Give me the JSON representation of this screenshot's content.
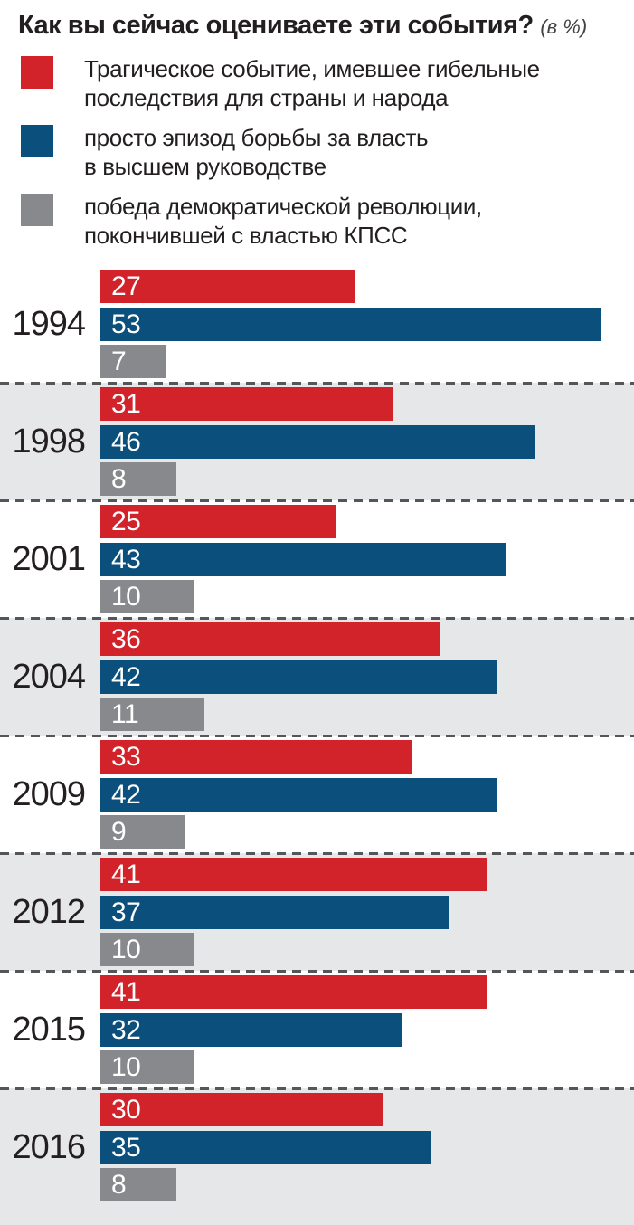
{
  "page": {
    "title": "Как вы сейчас оцениваете эти события?",
    "title_unit": "(в %)"
  },
  "legend": {
    "items": [
      {
        "series": "tragic",
        "color": "#d2232a",
        "label": "Трагическое событие, имевшее гибельные\nпоследствия для страны и народа"
      },
      {
        "series": "power-struggle",
        "color": "#0b4f7c",
        "label": "просто эпизод борьбы за власть\nв высшем руководстве"
      },
      {
        "series": "democratic-victory",
        "color": "#87898c",
        "label": "победа демократической революции,\nпокончившей с властью КПСС"
      }
    ]
  },
  "palette": {
    "row_alt_bg": "#e6e7e8",
    "separator": "#55565a",
    "text": "#231f20",
    "value_text": "#ffffff"
  },
  "chart_data": {
    "type": "bar",
    "orientation": "horizontal",
    "title": "Как вы сейчас оцениваете эти события?",
    "unit": "в %",
    "categories": [
      "1994",
      "1998",
      "2001",
      "2004",
      "2009",
      "2012",
      "2015",
      "2016"
    ],
    "series": [
      {
        "name": "Трагическое событие, имевшее гибельные последствия для страны и народа",
        "color": "#d2232a",
        "values": [
          27,
          31,
          25,
          36,
          33,
          41,
          41,
          30
        ]
      },
      {
        "name": "просто эпизод борьбы за власть в высшем руководстве",
        "color": "#0b4f7c",
        "values": [
          53,
          46,
          43,
          42,
          42,
          37,
          32,
          35
        ]
      },
      {
        "name": "победа демократической революции, покончившей с властью КПСС",
        "color": "#87898c",
        "values": [
          7,
          8,
          10,
          11,
          9,
          10,
          10,
          8
        ]
      }
    ],
    "xlim": [
      0,
      56.5
    ],
    "value_labels": "inside-left",
    "legend_position": "top",
    "grid": false,
    "row_separator": "dashed",
    "alternating_row_background": true
  }
}
